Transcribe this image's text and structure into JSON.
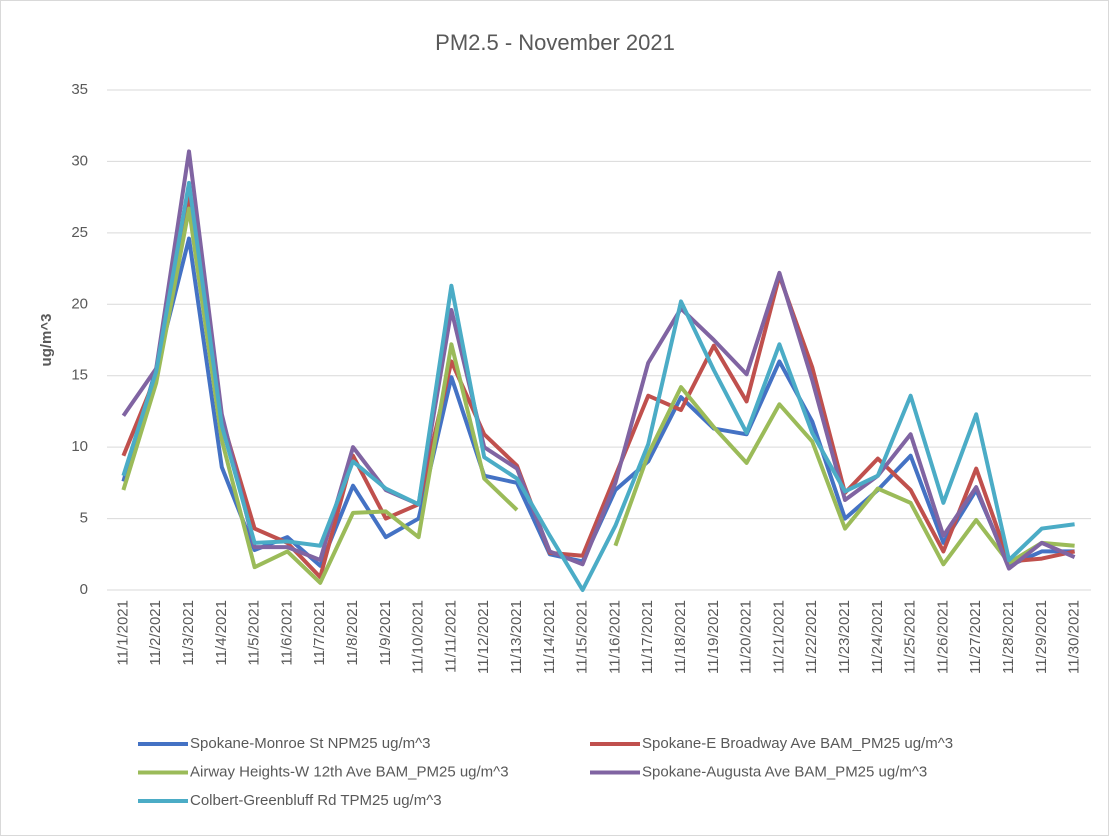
{
  "chart_data": {
    "type": "line",
    "title": "PM2.5 - November 2021",
    "y_label": "ug/m^3",
    "categories": [
      "11/1/2021",
      "11/2/2021",
      "11/3/2021",
      "11/4/2021",
      "11/5/2021",
      "11/6/2021",
      "11/7/2021",
      "11/8/2021",
      "11/9/2021",
      "11/10/2021",
      "11/11/2021",
      "11/12/2021",
      "11/13/2021",
      "11/14/2021",
      "11/15/2021",
      "11/16/2021",
      "11/17/2021",
      "11/18/2021",
      "11/19/2021",
      "11/20/2021",
      "11/21/2021",
      "11/22/2021",
      "11/23/2021",
      "11/24/2021",
      "11/25/2021",
      "11/26/2021",
      "11/27/2021",
      "11/28/2021",
      "11/29/2021",
      "11/30/2021"
    ],
    "series": [
      {
        "name": "Spokane-Monroe St NPM25 ug/m^3",
        "color": "#4472c4",
        "values": [
          7.6,
          15.5,
          24.6,
          8.6,
          2.8,
          3.7,
          1.7,
          7.3,
          3.7,
          5.0,
          14.9,
          8.0,
          7.5,
          2.5,
          2.0,
          7.0,
          9.0,
          13.5,
          11.3,
          10.9,
          16.0,
          11.8,
          5.0,
          7.0,
          9.4,
          3.3,
          7.0,
          1.7,
          2.7,
          2.7
        ]
      },
      {
        "name": "Spokane-E Broadway Ave BAM_PM25 ug/m^3",
        "color": "#c0504d",
        "values": [
          9.4,
          15.0,
          27.7,
          12.0,
          4.3,
          3.3,
          0.9,
          9.4,
          5.0,
          6.0,
          16.0,
          10.9,
          8.7,
          2.6,
          2.4,
          8.0,
          13.6,
          12.6,
          17.1,
          13.2,
          22.0,
          15.6,
          6.8,
          9.2,
          7.0,
          2.7,
          8.5,
          2.0,
          2.2,
          2.7
        ]
      },
      {
        "name": "Airway Heights-W 12th Ave BAM_PM25 ug/m^3",
        "color": "#9bbb59",
        "values": [
          7.0,
          14.5,
          26.7,
          10.5,
          1.6,
          2.7,
          0.5,
          5.4,
          5.5,
          3.7,
          17.2,
          7.8,
          5.6,
          null,
          null,
          3.1,
          9.5,
          14.2,
          11.4,
          8.9,
          13.0,
          10.4,
          4.3,
          7.1,
          6.1,
          1.8,
          4.9,
          1.9,
          3.3,
          3.1
        ]
      },
      {
        "name": "Spokane-Augusta Ave BAM_PM25 ug/m^3",
        "color": "#8064a2",
        "values": [
          12.2,
          15.5,
          30.7,
          12.3,
          3.0,
          3.0,
          2.1,
          10.0,
          7.0,
          6.0,
          19.6,
          10.0,
          8.5,
          2.7,
          1.8,
          7.5,
          15.9,
          19.7,
          17.5,
          15.1,
          22.2,
          14.7,
          6.3,
          8.0,
          10.9,
          3.8,
          7.2,
          1.5,
          3.3,
          2.3
        ]
      },
      {
        "name": "Colbert-Greenbluff Rd TPM25 ug/m^3",
        "color": "#4bacc6",
        "values": [
          8.0,
          15.3,
          28.5,
          11.5,
          3.3,
          3.4,
          3.1,
          9.0,
          7.1,
          6.0,
          21.3,
          9.3,
          7.8,
          3.8,
          0.0,
          4.5,
          10.2,
          20.2,
          15.4,
          11.0,
          17.2,
          11.0,
          6.9,
          8.0,
          13.6,
          6.1,
          12.3,
          2.1,
          4.3,
          4.6
        ]
      }
    ],
    "ylim": [
      0,
      35
    ],
    "yticks": [
      0,
      5,
      10,
      15,
      20,
      25,
      30,
      35
    ],
    "grid": true,
    "legend": "bottom"
  }
}
